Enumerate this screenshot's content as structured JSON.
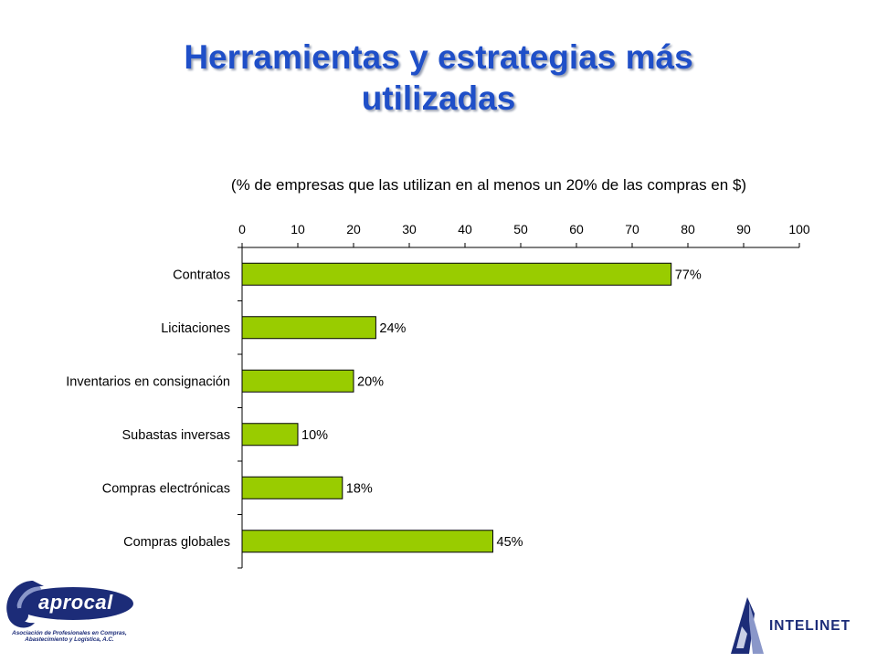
{
  "slide": {
    "title_line1": "Herramientas y estrategias más",
    "title_line2": "utilizadas"
  },
  "chart_data": {
    "type": "bar",
    "orientation": "horizontal",
    "subtitle": "(% de empresas que las utilizan en al menos un 20% de las compras en $)",
    "categories": [
      "Contratos",
      "Licitaciones",
      "Inventarios en consignación",
      "Subastas inversas",
      "Compras electrónicas",
      "Compras globales"
    ],
    "values": [
      77,
      24,
      20,
      10,
      18,
      45
    ],
    "data_labels": [
      "77%",
      "24%",
      "20%",
      "10%",
      "18%",
      "45%"
    ],
    "xlim": [
      0,
      100
    ],
    "x_ticks": [
      0,
      10,
      20,
      30,
      40,
      50,
      60,
      70,
      80,
      90,
      100
    ],
    "x_axis_position": "top",
    "bar_color": "#99cc00",
    "grid": false,
    "legend": "none"
  },
  "logos": {
    "left": {
      "name": "aprocal",
      "tagline": "Asociación de Profesionales en Compras, Abastecimiento y Logística, A.C.",
      "color": "#1c2c78"
    },
    "right": {
      "name": "INTELINET",
      "color": "#1c2c78"
    }
  },
  "colors": {
    "title": "#1f4fc8",
    "bar": "#99cc00",
    "axis": "#000000"
  }
}
